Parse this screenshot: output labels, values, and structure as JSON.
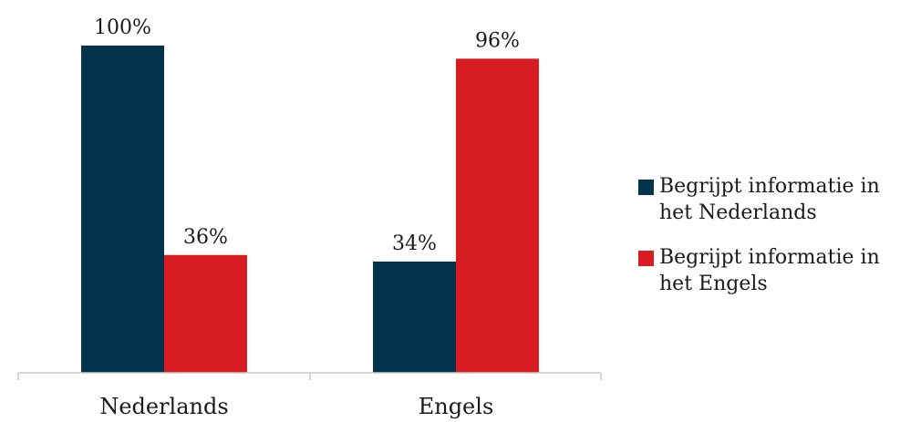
{
  "chart_data": {
    "type": "bar",
    "categories": [
      "Nederlands",
      "Engels"
    ],
    "series": [
      {
        "name": "Begrijpt informatie in het Nederlands",
        "values": [
          100,
          34
        ],
        "color": "#02344d"
      },
      {
        "name": "Begrijpt informatie in het Engels",
        "values": [
          36,
          96
        ],
        "color": "#d71c22"
      }
    ],
    "value_labels": [
      [
        "100%",
        "34%"
      ],
      [
        "36%",
        "96%"
      ]
    ],
    "ylim": [
      0,
      100
    ],
    "grid": false,
    "legend_position": "right"
  }
}
